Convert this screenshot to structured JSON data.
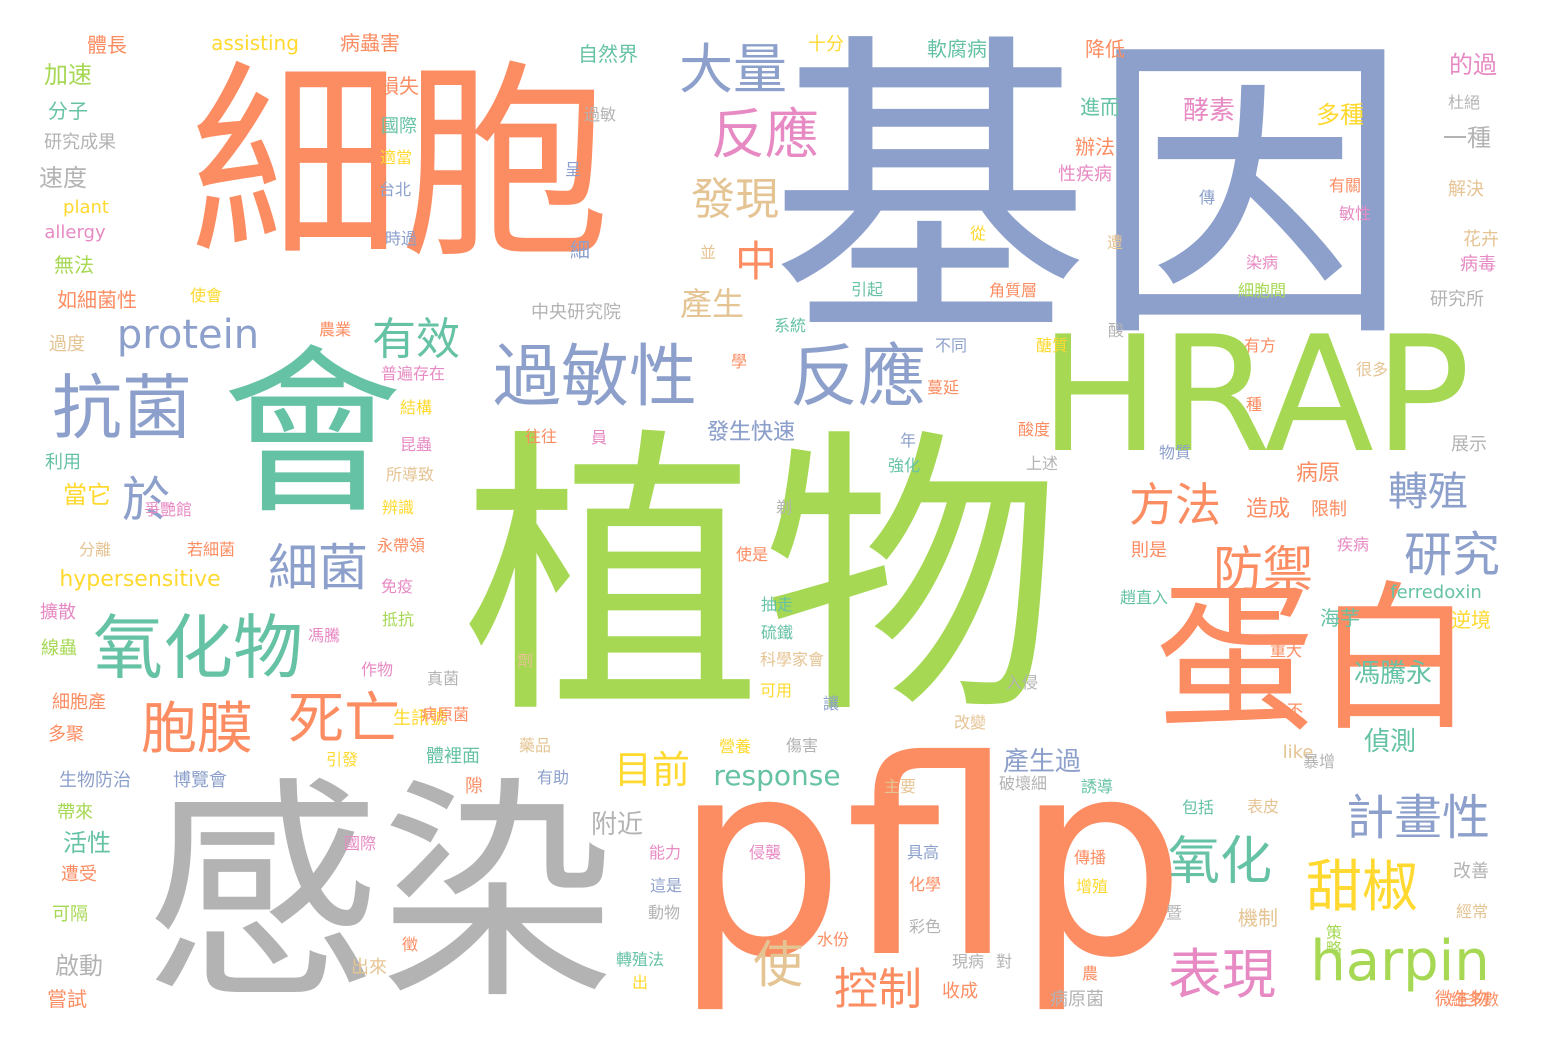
{
  "palette": {
    "green": "#a6d854",
    "orange": "#fc8d62",
    "blue": "#8da0cb",
    "teal": "#66c2a5",
    "gray": "#b3b3b3",
    "pink": "#e78ac3",
    "yellow": "#ffd92f",
    "tan": "#e5c494"
  },
  "words": [
    "植物",
    "基因",
    "細胞",
    "感染",
    "pflp",
    "會",
    "HRAP",
    "蛋白",
    "過敏性",
    "反應",
    "抗菌",
    "氧化物",
    "大量",
    "反應",
    "發現",
    "protein",
    "有效",
    "於",
    "細菌",
    "胞膜",
    "死亡",
    "中",
    "方法",
    "防禦",
    "轉殖",
    "研究",
    "目前",
    "甜椒",
    "harpin",
    "氧化",
    "計畫性",
    "表現",
    "控制",
    "使",
    "response",
    "產生",
    "hypersensitive",
    "附近",
    "產生過",
    "發生快速",
    "偵測",
    "馮騰永",
    "病原",
    "造成",
    "限制",
    "酵素",
    "多種",
    "一種",
    "的過",
    "體長",
    "assisting",
    "病蟲害",
    "十分",
    "軟腐病",
    "降低",
    "自然界",
    "加速",
    "損失",
    "國際",
    "分子",
    "研究成果",
    "速度",
    "plant",
    "allergy",
    "無法",
    "如細菌性",
    "過度",
    "利用",
    "當它",
    "分離",
    "擴散",
    "帶來",
    "活性",
    "可隔",
    "嘗試",
    "啟動",
    "生物防治",
    "博覽會",
    "中央研究院",
    "ferredoxin",
    "海芋",
    "逆境",
    "微生物",
    "絕多數",
    "策略",
    "病原菌",
    "收成",
    "進而",
    "辦法",
    "性疾病",
    "有關",
    "敏性",
    "解決",
    "花卉",
    "病毒",
    "研究所",
    "很多",
    "展示",
    "改善",
    "經常",
    "傳播",
    "增殖",
    "機制",
    "表皮",
    "包括",
    "誘導",
    "破壞細",
    "具高",
    "化學",
    "能力",
    "侵襲",
    "水份",
    "彩色",
    "出來",
    "轉殖法",
    "對",
    "現病",
    "硫鐵",
    "抽走",
    "科學家會",
    "可用",
    "讓",
    "改變",
    "傷害",
    "營養",
    "藥品",
    "有助",
    "體裡面",
    "生訊號",
    "真菌",
    "作物",
    "抵抗",
    "免疫",
    "永帶領",
    "辨識",
    "若細菌",
    "爭艷館",
    "所導致",
    "昆蟲",
    "往往",
    "發生快速",
    "結構",
    "普遍存在",
    "農業",
    "使會",
    "引起",
    "系統",
    "角質層",
    "細胞間",
    "染病",
    "台北",
    "適當",
    "時過",
    "過敏",
    "呈",
    "細",
    "從",
    "遭",
    "傳",
    "杜絕",
    "酸度",
    "醣質",
    "蔓延",
    "強化",
    "年",
    "上述",
    "物質",
    "種",
    "有方",
    "不同",
    "員",
    "則是",
    "使是",
    "趙直入",
    "疾病",
    "重大",
    "入侵",
    "不",
    "like",
    "暴增",
    "隙",
    "主要",
    "國際",
    "引發",
    "徵",
    "出",
    "這是",
    "動物",
    "暨",
    "農",
    "線蟲",
    "多聚",
    "細胞產",
    "馮騰",
    "遭受",
    "學",
    "酸",
    "剃",
    "並",
    "病原菌",
    "劑"
  ]
}
